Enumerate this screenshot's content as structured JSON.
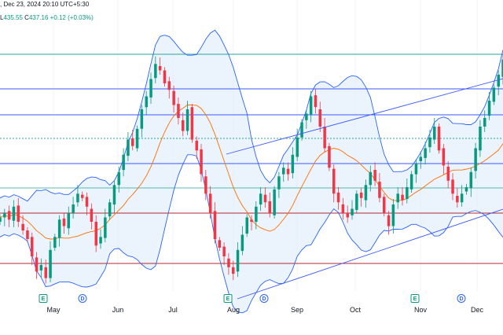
{
  "header": {
    "date_text": ", Dec 23, 2024 20:10 UTC+5:30",
    "l_label": "L",
    "l_value": "435.55",
    "c_label": "C",
    "c_value": "437.16",
    "change": "+0.12 (+0.03%)"
  },
  "x_axis": {
    "months": [
      "May",
      "Jun",
      "Jul",
      "Aug",
      "Sep",
      "Oct",
      "Nov",
      "Dec"
    ]
  },
  "events": [
    {
      "type": "earnings",
      "label": "E"
    },
    {
      "type": "dividend",
      "label": "D"
    },
    {
      "type": "earnings",
      "label": "E"
    },
    {
      "type": "dividend",
      "label": "D"
    },
    {
      "type": "earnings",
      "label": "E"
    },
    {
      "type": "dividend",
      "label": "D"
    }
  ],
  "colors": {
    "up": "#089981",
    "down": "#f23645",
    "band": "#2962ff",
    "band_fill": "#e3effb",
    "basis": "#ff6d00",
    "trendline": "#3d5afe",
    "hline_blue": "#3d5afe",
    "hline_teal": "#26a69a",
    "hline_red": "#b22833"
  },
  "chart_data": {
    "type": "candlestick",
    "series_name": "",
    "close_series": [
      448,
      452,
      446,
      458,
      444,
      436,
      428,
      412,
      398,
      404,
      392,
      418,
      430,
      446,
      440,
      452,
      460,
      470,
      466,
      458,
      444,
      422,
      430,
      448,
      462,
      478,
      490,
      506,
      520,
      514,
      530,
      548,
      560,
      576,
      590,
      584,
      572,
      566,
      552,
      540,
      528,
      548,
      520,
      510,
      488,
      470,
      452,
      428,
      420,
      412,
      402,
      396,
      418,
      432,
      448,
      444,
      458,
      470,
      462,
      452,
      474,
      486,
      494,
      488,
      506,
      522,
      536,
      544,
      560,
      550,
      532,
      512,
      494,
      470,
      462,
      452,
      448,
      456,
      470,
      466,
      478,
      490,
      482,
      466,
      452,
      440,
      460,
      470,
      464,
      476,
      488,
      498,
      504,
      512,
      522,
      532,
      510,
      496,
      482,
      470,
      462,
      470,
      476,
      490,
      512,
      532,
      540,
      556,
      568,
      580,
      594
    ],
    "up_color": "#089981",
    "down_color": "#f23645"
  }
}
